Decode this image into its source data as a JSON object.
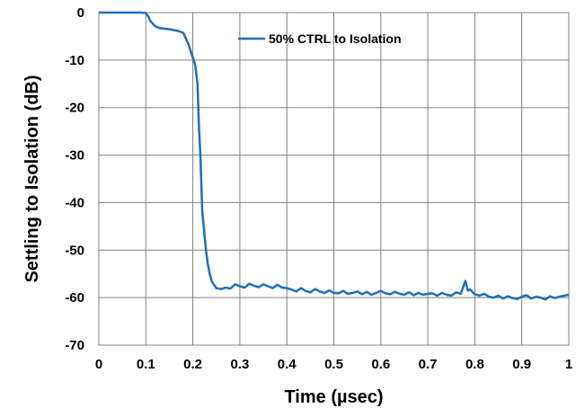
{
  "chart_data": {
    "type": "line",
    "title": "",
    "xlabel": "Time (µsec)",
    "ylabel": "Settling to Isolation  (dB)",
    "xlim": [
      0,
      1
    ],
    "ylim": [
      -70,
      0
    ],
    "xticks": [
      0,
      0.1,
      0.2,
      0.3,
      0.4,
      0.5,
      0.6,
      0.7,
      0.8,
      0.9,
      1
    ],
    "xtick_labels": [
      "0",
      "0.1",
      "0.2",
      "0.3",
      "0.4",
      "0.5",
      "0.6",
      "0.7",
      "0.8",
      "0.9",
      "1"
    ],
    "yticks": [
      0,
      -10,
      -20,
      -30,
      -40,
      -50,
      -60,
      -70
    ],
    "ytick_labels": [
      "0",
      "-10",
      "-20",
      "-30",
      "-40",
      "-50",
      "-60",
      "-70"
    ],
    "grid": true,
    "legend_position": "top-right",
    "series": [
      {
        "name": "50% CTRL to Isolation",
        "color": "#1f6fb8",
        "points": [
          [
            0,
            0
          ],
          [
            0.03,
            0
          ],
          [
            0.06,
            0
          ],
          [
            0.09,
            0
          ],
          [
            0.1,
            -0.1
          ],
          [
            0.105,
            -0.8
          ],
          [
            0.11,
            -1.8
          ],
          [
            0.12,
            -2.9
          ],
          [
            0.13,
            -3.3
          ],
          [
            0.15,
            -3.5
          ],
          [
            0.17,
            -3.9
          ],
          [
            0.18,
            -4.3
          ],
          [
            0.19,
            -6.5
          ],
          [
            0.2,
            -9.5
          ],
          [
            0.205,
            -11
          ],
          [
            0.21,
            -15
          ],
          [
            0.213,
            -24
          ],
          [
            0.216,
            -30
          ],
          [
            0.22,
            -42
          ],
          [
            0.224,
            -46
          ],
          [
            0.228,
            -50
          ],
          [
            0.232,
            -53
          ],
          [
            0.236,
            -55
          ],
          [
            0.24,
            -56.5
          ],
          [
            0.245,
            -57.3
          ],
          [
            0.25,
            -58
          ],
          [
            0.26,
            -58.2
          ],
          [
            0.27,
            -57.9
          ],
          [
            0.28,
            -58.1
          ],
          [
            0.29,
            -57.2
          ],
          [
            0.3,
            -57.6
          ],
          [
            0.31,
            -57.9
          ],
          [
            0.32,
            -57.1
          ],
          [
            0.33,
            -57.5
          ],
          [
            0.34,
            -57.8
          ],
          [
            0.35,
            -57.2
          ],
          [
            0.36,
            -57.6
          ],
          [
            0.37,
            -58
          ],
          [
            0.38,
            -57.3
          ],
          [
            0.39,
            -57.9
          ],
          [
            0.4,
            -58
          ],
          [
            0.41,
            -58.3
          ],
          [
            0.42,
            -58.7
          ],
          [
            0.43,
            -58
          ],
          [
            0.44,
            -58.6
          ],
          [
            0.45,
            -58.9
          ],
          [
            0.46,
            -58.2
          ],
          [
            0.47,
            -58.7
          ],
          [
            0.48,
            -59
          ],
          [
            0.49,
            -58.5
          ],
          [
            0.5,
            -59
          ],
          [
            0.51,
            -59.1
          ],
          [
            0.52,
            -58.6
          ],
          [
            0.53,
            -59.2
          ],
          [
            0.54,
            -59
          ],
          [
            0.55,
            -58.7
          ],
          [
            0.56,
            -59.3
          ],
          [
            0.57,
            -58.8
          ],
          [
            0.58,
            -59.4
          ],
          [
            0.59,
            -59
          ],
          [
            0.6,
            -58.6
          ],
          [
            0.61,
            -59.1
          ],
          [
            0.62,
            -59.3
          ],
          [
            0.63,
            -58.8
          ],
          [
            0.64,
            -59.2
          ],
          [
            0.65,
            -59.4
          ],
          [
            0.66,
            -58.9
          ],
          [
            0.67,
            -59.5
          ],
          [
            0.68,
            -59
          ],
          [
            0.69,
            -59.4
          ],
          [
            0.7,
            -59.2
          ],
          [
            0.71,
            -59.1
          ],
          [
            0.72,
            -59.6
          ],
          [
            0.73,
            -59
          ],
          [
            0.74,
            -59.4
          ],
          [
            0.75,
            -59.6
          ],
          [
            0.76,
            -58.9
          ],
          [
            0.77,
            -59.2
          ],
          [
            0.78,
            -56.5
          ],
          [
            0.785,
            -58.5
          ],
          [
            0.79,
            -58.3
          ],
          [
            0.8,
            -59.3
          ],
          [
            0.81,
            -59.6
          ],
          [
            0.82,
            -59.2
          ],
          [
            0.83,
            -59.8
          ],
          [
            0.84,
            -60
          ],
          [
            0.85,
            -59.6
          ],
          [
            0.86,
            -60.2
          ],
          [
            0.87,
            -59.7
          ],
          [
            0.88,
            -60.1
          ],
          [
            0.89,
            -60.3
          ],
          [
            0.9,
            -59.8
          ],
          [
            0.91,
            -59.5
          ],
          [
            0.92,
            -60.2
          ],
          [
            0.93,
            -59.8
          ],
          [
            0.94,
            -60
          ],
          [
            0.95,
            -60.4
          ],
          [
            0.96,
            -59.7
          ],
          [
            0.97,
            -60.1
          ],
          [
            0.98,
            -59.8
          ],
          [
            0.99,
            -59.6
          ],
          [
            1,
            -59.4
          ]
        ]
      }
    ]
  }
}
